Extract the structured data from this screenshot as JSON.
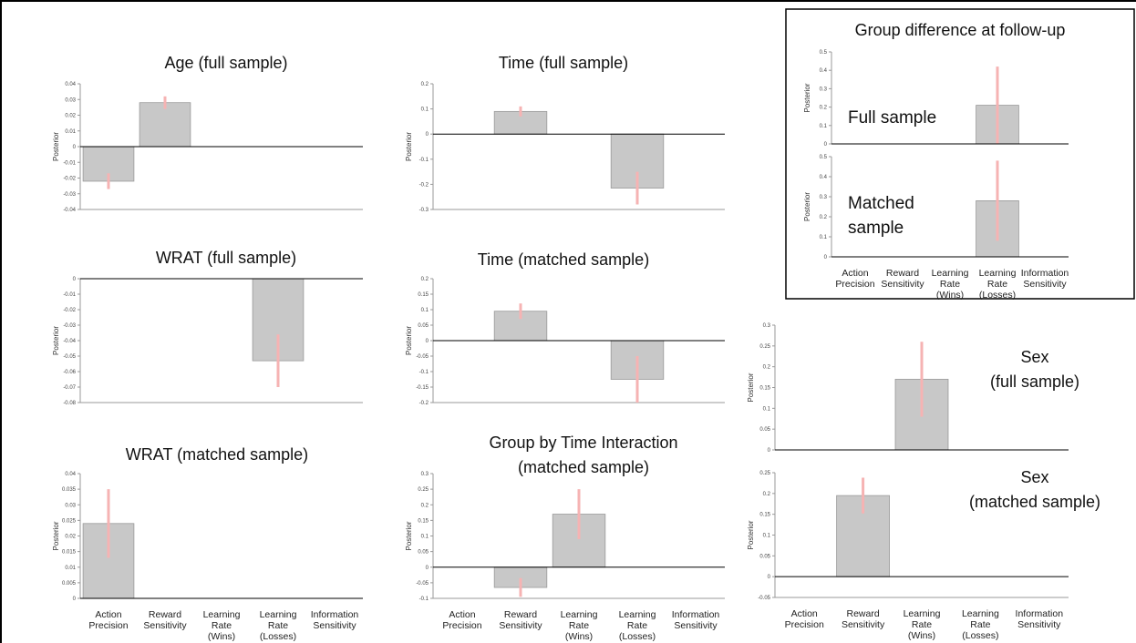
{
  "panel": {
    "title": "Group difference at follow-up"
  },
  "chart_data": [
    {
      "type": "bar",
      "title": "Age (full sample)",
      "ylabel": "Posterior",
      "categories": [
        null,
        null,
        null,
        null,
        null
      ],
      "values": [
        -0.022,
        0.028,
        0,
        0,
        0
      ],
      "errors": [
        0.005,
        0.004,
        0,
        0,
        0
      ],
      "ylim": [
        -0.04,
        0.04
      ],
      "yticks": [
        -0.04,
        -0.03,
        -0.02,
        -0.01,
        0,
        0.01,
        0.02,
        0.03,
        0.04
      ],
      "color": "#c8c8c8",
      "error_color": "#f6b3b3"
    },
    {
      "type": "bar",
      "title": "Time (full sample)",
      "ylabel": "Posterior",
      "categories": [
        null,
        null,
        null,
        null,
        null
      ],
      "values": [
        0,
        0.09,
        0,
        -0.215,
        0
      ],
      "errors": [
        0,
        0.02,
        0,
        0.065,
        0
      ],
      "ylim": [
        -0.3,
        0.2
      ],
      "yticks": [
        -0.3,
        -0.2,
        -0.1,
        0,
        0.1,
        0.2
      ],
      "color": "#c8c8c8",
      "error_color": "#f6b3b3"
    },
    {
      "type": "bar",
      "title": "Full sample",
      "ylabel": "Posterior",
      "categories": [
        null,
        null,
        null,
        null,
        null
      ],
      "values": [
        0,
        0,
        0,
        0.21,
        0
      ],
      "errors": [
        0,
        0,
        0,
        0.21,
        0
      ],
      "ylim": [
        0,
        0.5
      ],
      "yticks": [
        0,
        0.1,
        0.2,
        0.3,
        0.4,
        0.5
      ],
      "color": "#c8c8c8",
      "error_color": "#f6b3b3"
    },
    {
      "type": "bar",
      "title": "Matched\nsample",
      "ylabel": "Posterior",
      "categories": [
        "Action\nPrecision",
        "Reward\nSensitivity",
        "Learning\nRate\n(Wins)",
        "Learning\nRate\n(Losses)",
        "Information\nSensitivity"
      ],
      "values": [
        0,
        0,
        0,
        0.28,
        0
      ],
      "errors": [
        0,
        0,
        0,
        0.2,
        0
      ],
      "ylim": [
        0,
        0.5
      ],
      "yticks": [
        0,
        0.1,
        0.2,
        0.3,
        0.4,
        0.5
      ],
      "color": "#c8c8c8",
      "error_color": "#f6b3b3"
    },
    {
      "type": "bar",
      "title": "WRAT (full sample)",
      "ylabel": "Posterior",
      "categories": [
        null,
        null,
        null,
        null,
        null
      ],
      "values": [
        0,
        0,
        0,
        -0.053,
        0
      ],
      "errors": [
        0,
        0,
        0,
        0.017,
        0
      ],
      "ylim": [
        -0.08,
        0
      ],
      "yticks": [
        -0.08,
        -0.07,
        -0.06,
        -0.05,
        -0.04,
        -0.03,
        -0.02,
        -0.01,
        0
      ],
      "color": "#c8c8c8",
      "error_color": "#f6b3b3"
    },
    {
      "type": "bar",
      "title": "Time (matched sample)",
      "ylabel": "Posterior",
      "categories": [
        null,
        null,
        null,
        null,
        null
      ],
      "values": [
        0,
        0.095,
        0,
        -0.125,
        0
      ],
      "errors": [
        0,
        0.025,
        0,
        0.075,
        0
      ],
      "ylim": [
        -0.2,
        0.2
      ],
      "yticks": [
        -0.2,
        -0.15,
        -0.1,
        -0.05,
        0,
        0.05,
        0.1,
        0.15,
        0.2
      ],
      "color": "#c8c8c8",
      "error_color": "#f6b3b3"
    },
    {
      "type": "bar",
      "title": "Sex\n(full sample)",
      "ylabel": "Posterior",
      "categories": [
        null,
        null,
        null,
        null,
        null
      ],
      "values": [
        0,
        0,
        0.17,
        0,
        0
      ],
      "errors": [
        0,
        0,
        0.09,
        0,
        0
      ],
      "ylim": [
        0,
        0.3
      ],
      "yticks": [
        0,
        0.05,
        0.1,
        0.15,
        0.2,
        0.25,
        0.3
      ],
      "color": "#c8c8c8",
      "error_color": "#f6b3b3"
    },
    {
      "type": "bar",
      "title": "WRAT (matched sample)",
      "ylabel": "Posterior",
      "categories": [
        "Action\nPrecision",
        "Reward\nSensitivity",
        "Learning\nRate\n(Wins)",
        "Learning\nRate\n(Losses)",
        "Information\nSensitivity"
      ],
      "values": [
        0.024,
        0,
        0,
        0,
        0
      ],
      "errors": [
        0.011,
        0,
        0,
        0,
        0
      ],
      "ylim": [
        0,
        0.04
      ],
      "yticks": [
        0,
        0.005,
        0.01,
        0.015,
        0.02,
        0.025,
        0.03,
        0.035,
        0.04
      ],
      "color": "#c8c8c8",
      "error_color": "#f6b3b3"
    },
    {
      "type": "bar",
      "title": "Group by Time Interaction\n(matched sample)",
      "ylabel": "Posterior",
      "categories": [
        "Action\nPrecision",
        "Reward\nSensitivity",
        "Learning\nRate\n(Wins)",
        "Learning\nRate\n(Losses)",
        "Information\nSensitivity"
      ],
      "values": [
        0,
        -0.065,
        0.17,
        0,
        0
      ],
      "errors": [
        0,
        0.03,
        0.08,
        0,
        0
      ],
      "ylim": [
        -0.1,
        0.3
      ],
      "yticks": [
        -0.1,
        -0.05,
        0,
        0.05,
        0.1,
        0.15,
        0.2,
        0.25,
        0.3
      ],
      "color": "#c8c8c8",
      "error_color": "#f6b3b3"
    },
    {
      "type": "bar",
      "title": "Sex\n(matched sample)",
      "ylabel": "Posterior",
      "categories": [
        "Action\nPrecision",
        "Reward\nSensitivity",
        "Learning\nRate\n(Wins)",
        "Learning\nRate\n(Losses)",
        "Information\nSensitivity"
      ],
      "values": [
        0,
        0.195,
        0,
        0,
        0
      ],
      "errors": [
        0,
        0.043,
        0,
        0,
        0
      ],
      "ylim": [
        -0.05,
        0.25
      ],
      "yticks": [
        -0.05,
        0,
        0.05,
        0.1,
        0.15,
        0.2,
        0.25
      ],
      "color": "#c8c8c8",
      "error_color": "#f6b3b3"
    }
  ]
}
